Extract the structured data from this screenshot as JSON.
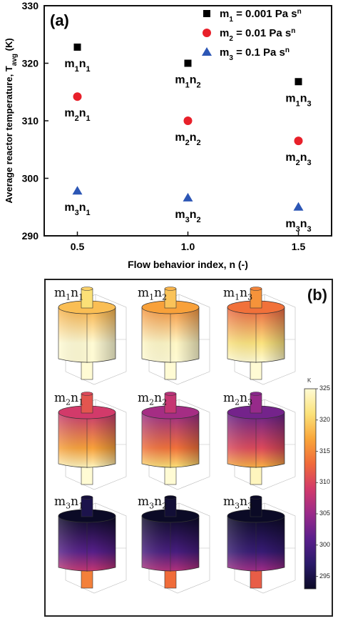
{
  "chart_data": [
    {
      "type": "scatter",
      "panel_label": "(a)",
      "xlabel": "Flow behavior index, n (-)",
      "ylabel": "Average reactor temperature, T",
      "ylabel_sub": "avg",
      "ylabel_unit": " (K)",
      "xlim": [
        0.5,
        1.5
      ],
      "ylim": [
        290,
        330
      ],
      "xticks": [
        "0.5",
        "1.0",
        "1.5"
      ],
      "yticks": [
        "290",
        "300",
        "310",
        "320",
        "330"
      ],
      "grid": false,
      "legend_position": "top-right",
      "series": [
        {
          "name": "m1 = 0.001 Pa sn",
          "legend": {
            "base": "m",
            "sub": "1",
            "mid": " = 0.001 Pa s",
            "sup": "n"
          },
          "marker": "square",
          "color": "#000000",
          "x": [
            0.5,
            1.0,
            1.5
          ],
          "y": [
            322.8,
            320.0,
            316.8
          ],
          "point_labels": [
            {
              "m": "1",
              "n": "1"
            },
            {
              "m": "1",
              "n": "2"
            },
            {
              "m": "1",
              "n": "3"
            }
          ]
        },
        {
          "name": "m2 = 0.01 Pa sn",
          "legend": {
            "base": "m",
            "sub": "2",
            "mid": " = 0.01 Pa s",
            "sup": "n"
          },
          "marker": "circle",
          "color": "#e8202a",
          "x": [
            0.5,
            1.0,
            1.5
          ],
          "y": [
            314.2,
            310.0,
            306.5
          ],
          "point_labels": [
            {
              "m": "2",
              "n": "1"
            },
            {
              "m": "2",
              "n": "2"
            },
            {
              "m": "2",
              "n": "3"
            }
          ]
        },
        {
          "name": "m3 = 0.1 Pa sn",
          "legend": {
            "base": "m",
            "sub": "3",
            "mid": " = 0.1 Pa s",
            "sup": "n"
          },
          "marker": "triangle",
          "color": "#2c56b5",
          "x": [
            0.5,
            1.0,
            1.5
          ],
          "y": [
            297.8,
            296.6,
            295.0
          ],
          "point_labels": [
            {
              "m": "3",
              "n": "1"
            },
            {
              "m": "3",
              "n": "2"
            },
            {
              "m": "3",
              "n": "3"
            }
          ]
        }
      ]
    },
    {
      "type": "heatmap",
      "panel_label": "(b)",
      "colorbar": {
        "unit": "K",
        "range": [
          293,
          325
        ],
        "ticks": [
          "295",
          "300",
          "305",
          "310",
          "315",
          "320",
          "325"
        ],
        "colormap": [
          "#0b0a26",
          "#2a1a6a",
          "#5a1f8c",
          "#9a2a8a",
          "#d23a6a",
          "#f06a3a",
          "#f9a63a",
          "#fbe27a",
          "#fffbd4"
        ]
      },
      "cells": [
        {
          "m": "1",
          "n": "1",
          "level": 0.92
        },
        {
          "m": "1",
          "n": "2",
          "level": 0.86
        },
        {
          "m": "1",
          "n": "3",
          "level": 0.76
        },
        {
          "m": "2",
          "n": "1",
          "level": 0.62
        },
        {
          "m": "2",
          "n": "2",
          "level": 0.52
        },
        {
          "m": "2",
          "n": "3",
          "level": 0.42
        },
        {
          "m": "3",
          "n": "1",
          "level": 0.12
        },
        {
          "m": "3",
          "n": "2",
          "level": 0.08
        },
        {
          "m": "3",
          "n": "3",
          "level": 0.04
        }
      ]
    }
  ]
}
